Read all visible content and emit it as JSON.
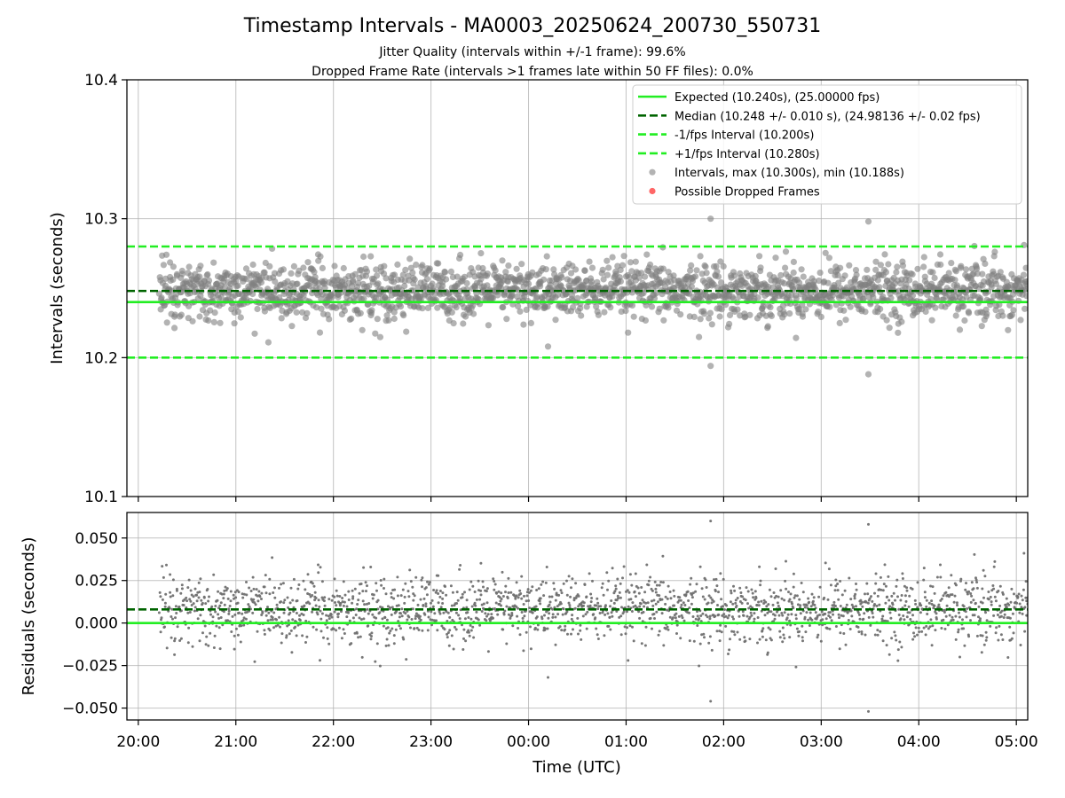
{
  "chart_data": [
    {
      "type": "scatter",
      "title": "Timestamp Intervals - MA0003_20250624_200730_550731",
      "subtitle_lines": [
        "Jitter Quality (intervals within +/-1 frame): 99.6%",
        "Dropped Frame Rate (intervals >1 frames late within 50 FF files): 0.0%"
      ],
      "xlabel": "",
      "ylabel": "Intervals (seconds)",
      "ylim": [
        10.1,
        10.4
      ],
      "yticks": [
        "10.1",
        "10.2",
        "10.3",
        "10.4"
      ],
      "grid": true,
      "legend_position": "top-right",
      "lines": [
        {
          "name": "Expected (10.240s), (25.00000 fps)",
          "y": 10.24,
          "style": "solid",
          "color": "#22ee22"
        },
        {
          "name": "Median (10.248 +/- 0.010 s), (24.98136 +/- 0.02 fps)",
          "y": 10.248,
          "style": "dashed",
          "color": "#006400"
        },
        {
          "name": "-1/fps Interval (10.200s)",
          "y": 10.2,
          "style": "dashed",
          "color": "#22ee22"
        },
        {
          "name": "+1/fps Interval (10.280s)",
          "y": 10.28,
          "style": "dashed",
          "color": "#22ee22"
        }
      ],
      "scatter_series": [
        {
          "name": "Intervals, max (10.300s), min (10.188s)",
          "color": "#808080",
          "count": 2000,
          "x_start": "20:13",
          "x_end": "05:07",
          "center": 10.248,
          "sd": 0.01
        },
        {
          "name": "Possible Dropped Frames",
          "color": "#ff5555",
          "count": 0
        }
      ],
      "outliers": [
        {
          "x": "01:52",
          "y": 10.3
        },
        {
          "x": "03:29",
          "y": 10.298
        },
        {
          "x": "01:52",
          "y": 10.194
        },
        {
          "x": "03:29",
          "y": 10.188
        },
        {
          "x": "21:20",
          "y": 10.211
        },
        {
          "x": "00:12",
          "y": 10.208
        }
      ]
    },
    {
      "type": "scatter",
      "title": "",
      "xlabel": "Time (UTC)",
      "ylabel": "Residuals (seconds)",
      "ylim": [
        -0.057,
        0.065
      ],
      "yticks": [
        "−0.050",
        "−0.025",
        "0.000",
        "0.025",
        "0.050"
      ],
      "x_tick_labels": [
        "20:00",
        "21:00",
        "22:00",
        "23:00",
        "00:00",
        "01:00",
        "02:00",
        "03:00",
        "04:00",
        "05:00"
      ],
      "xlim": [
        "19:53",
        "05:07"
      ],
      "grid": true,
      "lines": [
        {
          "y": 0.0,
          "style": "solid",
          "color": "#22ee22"
        },
        {
          "y": 0.008,
          "style": "dashed",
          "color": "#006400"
        }
      ],
      "scatter_series": [
        {
          "color": "#707070",
          "count": 2000,
          "x_start": "20:13",
          "x_end": "05:07",
          "center": 0.008,
          "sd": 0.01
        }
      ],
      "outliers": [
        {
          "x": "01:52",
          "y": 0.06
        },
        {
          "x": "03:29",
          "y": 0.058
        },
        {
          "x": "01:52",
          "y": -0.046
        },
        {
          "x": "03:29",
          "y": -0.052
        },
        {
          "x": "00:12",
          "y": -0.032
        }
      ]
    }
  ]
}
